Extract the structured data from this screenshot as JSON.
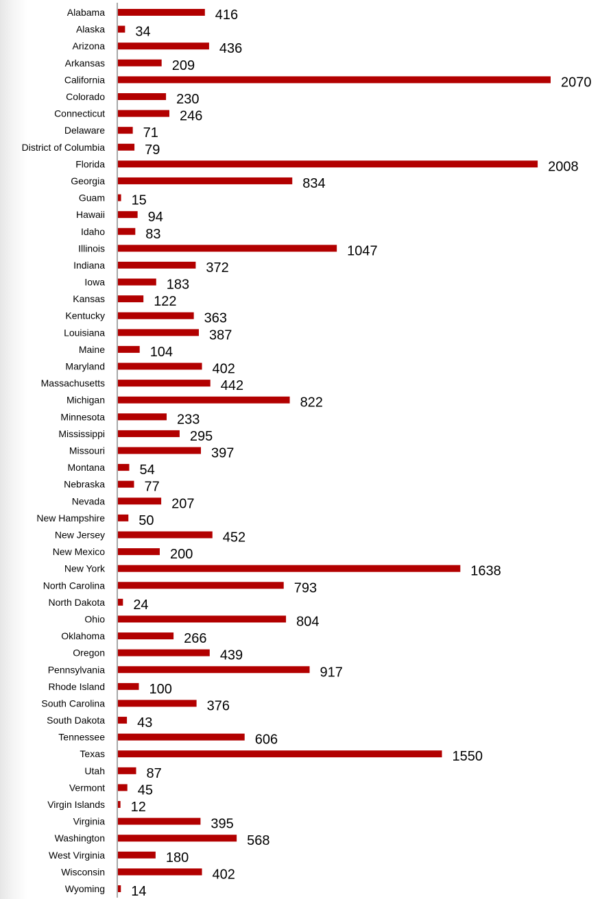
{
  "colors": {
    "bar": "#b20000",
    "axis": "#8c8c8c",
    "background": "#ffffff"
  },
  "chart_data": {
    "type": "bar",
    "orientation": "horizontal",
    "title": "",
    "xlabel": "",
    "ylabel": "",
    "grid": false,
    "legend": "none",
    "xlim": [
      0,
      2070
    ],
    "categories": [
      "Alabama",
      "Alaska",
      "Arizona",
      "Arkansas",
      "California",
      "Colorado",
      "Connecticut",
      "Delaware",
      "District of Columbia",
      "Florida",
      "Georgia",
      "Guam",
      "Hawaii",
      "Idaho",
      "Illinois",
      "Indiana",
      "Iowa",
      "Kansas",
      "Kentucky",
      "Louisiana",
      "Maine",
      "Maryland",
      "Massachusetts",
      "Michigan",
      "Minnesota",
      "Mississippi",
      "Missouri",
      "Montana",
      "Nebraska",
      "Nevada",
      "New Hampshire",
      "New Jersey",
      "New Mexico",
      "New York",
      "North Carolina",
      "North Dakota",
      "Ohio",
      "Oklahoma",
      "Oregon",
      "Pennsylvania",
      "Rhode Island",
      "South Carolina",
      "South Dakota",
      "Tennessee",
      "Texas",
      "Utah",
      "Vermont",
      "Virgin Islands",
      "Virginia",
      "Washington",
      "West Virginia",
      "Wisconsin",
      "Wyoming"
    ],
    "values": [
      416,
      34,
      436,
      209,
      2070,
      230,
      246,
      71,
      79,
      2008,
      834,
      15,
      94,
      83,
      1047,
      372,
      183,
      122,
      363,
      387,
      104,
      402,
      442,
      822,
      233,
      295,
      397,
      54,
      77,
      207,
      50,
      452,
      200,
      1638,
      793,
      24,
      804,
      266,
      439,
      917,
      100,
      376,
      43,
      606,
      1550,
      87,
      45,
      12,
      395,
      568,
      180,
      402,
      14
    ]
  }
}
